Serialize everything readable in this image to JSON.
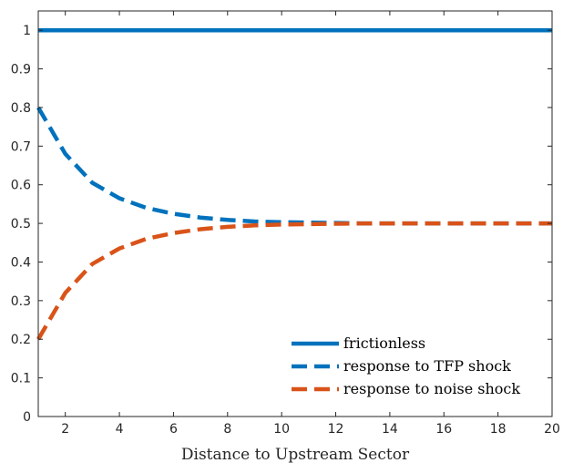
{
  "chart_data": {
    "type": "line",
    "xlabel": "Distance to Upstream Sector",
    "ylabel": "",
    "xlim": [
      1,
      20
    ],
    "ylim": [
      0,
      1.05
    ],
    "grid": false,
    "legend_position": "bottom-right",
    "xticks": [
      2,
      4,
      6,
      8,
      10,
      12,
      14,
      16,
      18,
      20
    ],
    "yticks": [
      0,
      0.1,
      0.2,
      0.3,
      0.4,
      0.5,
      0.6,
      0.7,
      0.8,
      0.9,
      1
    ],
    "ytick_labels": [
      "0",
      "0.1",
      "0.2",
      "0.3",
      "0.4",
      "0.5",
      "0.6",
      "0.7",
      "0.8",
      "0.9",
      "1"
    ],
    "x": [
      1,
      2,
      3,
      4,
      5,
      6,
      7,
      8,
      9,
      10,
      11,
      12,
      13,
      14,
      15,
      16,
      17,
      18,
      19,
      20
    ],
    "series": [
      {
        "name": "frictionless",
        "style": "solid",
        "color": "#0072BD",
        "values": [
          1,
          1,
          1,
          1,
          1,
          1,
          1,
          1,
          1,
          1,
          1,
          1,
          1,
          1,
          1,
          1,
          1,
          1,
          1,
          1
        ]
      },
      {
        "name": "response to TFP shock",
        "style": "dashed",
        "color": "#0072BD",
        "values": [
          0.8,
          0.68,
          0.605,
          0.565,
          0.54,
          0.525,
          0.515,
          0.509,
          0.505,
          0.503,
          0.502,
          0.501,
          0.5,
          0.5,
          0.5,
          0.5,
          0.5,
          0.5,
          0.5,
          0.5
        ]
      },
      {
        "name": "response to noise shock",
        "style": "dashed",
        "color": "#D95319",
        "values": [
          0.2,
          0.32,
          0.395,
          0.435,
          0.46,
          0.475,
          0.485,
          0.491,
          0.495,
          0.497,
          0.498,
          0.499,
          0.5,
          0.5,
          0.5,
          0.5,
          0.5,
          0.5,
          0.5,
          0.5
        ]
      }
    ]
  }
}
